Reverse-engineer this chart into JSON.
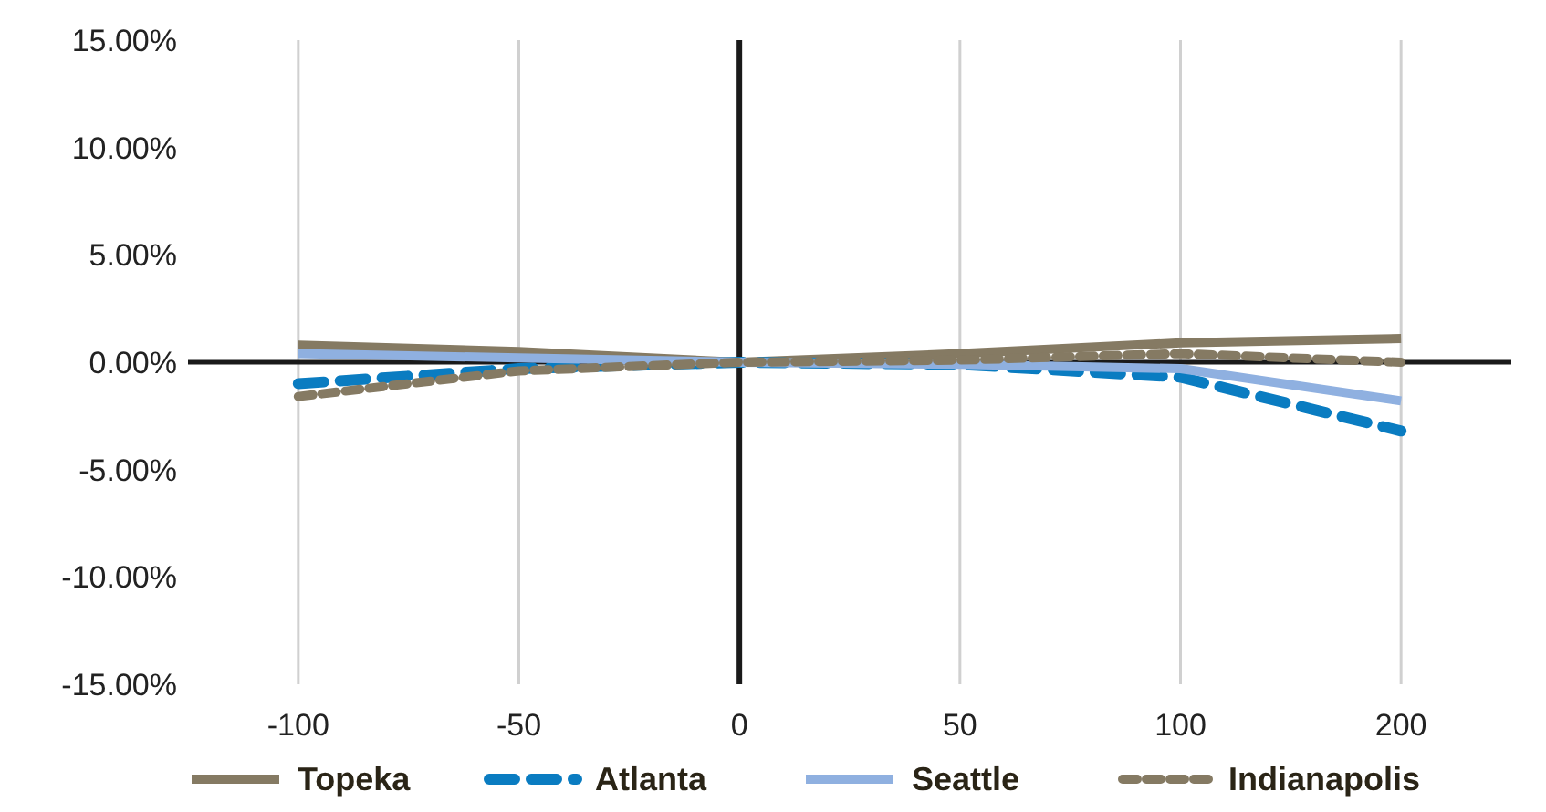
{
  "chart_data": {
    "type": "line",
    "categories": [
      "-100",
      "-50",
      "0",
      "50",
      "100",
      "200"
    ],
    "series": [
      {
        "name": "Topeka",
        "color": "#857a63",
        "line_style": "solid",
        "values": [
          0.8,
          0.5,
          0,
          0.4,
          0.9,
          1.1
        ]
      },
      {
        "name": "Atlanta",
        "color": "#0a7cc1",
        "line_style": "dashed",
        "values": [
          -1.0,
          -0.3,
          0,
          -0.1,
          -0.7,
          -3.2
        ]
      },
      {
        "name": "Seattle",
        "color": "#8fb0e0",
        "line_style": "solid",
        "values": [
          0.4,
          0.2,
          0,
          -0.1,
          -0.3,
          -1.8
        ]
      },
      {
        "name": "Indianapolis",
        "color": "#857a63",
        "line_style": "dotted",
        "values": [
          -1.6,
          -0.4,
          0,
          0.1,
          0.4,
          0.0
        ]
      }
    ],
    "ylim": [
      -15,
      15
    ],
    "yticks": [
      {
        "value": -15,
        "label": "-15.00%"
      },
      {
        "value": -10,
        "label": "-10.00%"
      },
      {
        "value": -5,
        "label": "-5.00%"
      },
      {
        "value": 0,
        "label": "0.00%"
      },
      {
        "value": 5,
        "label": "5.00%"
      },
      {
        "value": 10,
        "label": "10.00%"
      },
      {
        "value": 15,
        "label": "15.00%"
      }
    ],
    "ref_lines": [
      {
        "axis": "x",
        "value": "0",
        "color": "#1a1a1a"
      }
    ],
    "grid": "x",
    "legend": "bottom",
    "marker": "none"
  }
}
